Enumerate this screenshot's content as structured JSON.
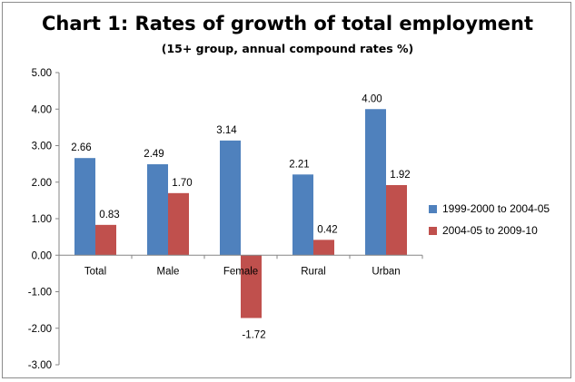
{
  "chart_data": {
    "type": "bar",
    "title": "Chart 1: Rates of growth of total employment",
    "subtitle": "(15+ group, annual compound rates %)",
    "categories": [
      "Total",
      "Male",
      "Female",
      "Rural",
      "Urban"
    ],
    "series": [
      {
        "name": "1999-2000 to 2004-05",
        "color": "#4f81bd",
        "values": [
          2.66,
          2.49,
          3.14,
          2.21,
          4.0
        ],
        "labels": [
          "2.66",
          "2.49",
          "3.14",
          "2.21",
          "4.00"
        ]
      },
      {
        "name": "2004-05 to 2009-10",
        "color": "#c0504d",
        "values": [
          0.83,
          1.7,
          -1.72,
          0.42,
          1.92
        ],
        "labels": [
          "0.83",
          "1.70",
          "-1.72",
          "0.42",
          "1.92"
        ]
      }
    ],
    "ylim": [
      -3,
      5
    ],
    "yticks": [
      "5.00",
      "4.00",
      "3.00",
      "2.00",
      "1.00",
      "0.00",
      "-1.00",
      "-2.00",
      "-3.00"
    ],
    "grid": false,
    "legend_position": "right"
  }
}
